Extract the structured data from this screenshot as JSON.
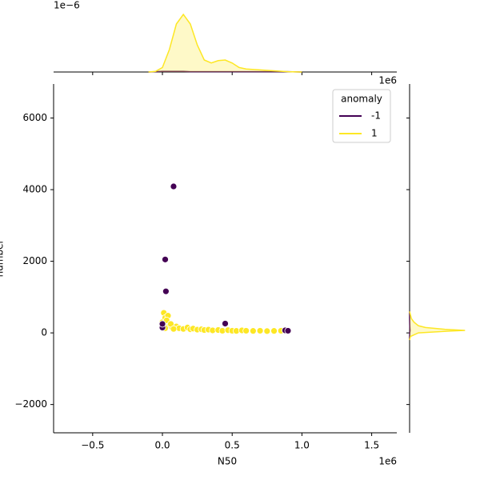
{
  "chart_data": {
    "type": "scatter",
    "x_label": "N50",
    "y_label": "number",
    "x_offset_label": "1e6",
    "top_offset_label": "1e−6",
    "right_offset_label": "1e6",
    "xlim": [
      -0.78,
      1.68
    ],
    "xticks": [
      {
        "value": -0.5,
        "label": "−0.5"
      },
      {
        "value": 0,
        "label": "0.0"
      },
      {
        "value": 0.5,
        "label": "0.5"
      },
      {
        "value": 1,
        "label": "1.0"
      },
      {
        "value": 1.5,
        "label": "1.5"
      }
    ],
    "ylim": [
      -2790,
      6950
    ],
    "yticks": [
      {
        "value": -2000,
        "label": "−2000"
      },
      0,
      2000,
      4000,
      6000
    ],
    "legend_title": "anomaly",
    "legend_position": "upper right",
    "series": [
      {
        "name": "-1",
        "color": "#440154",
        "x": [
          0.0,
          0.0,
          0.025,
          0.02,
          0.08,
          0.45,
          0.88,
          0.9
        ],
        "values": [
          150,
          250,
          1160,
          2050,
          4090,
          260,
          70,
          60
        ]
      },
      {
        "name": "1",
        "color": "#fde725",
        "x": [
          0.0,
          0.01,
          0.02,
          0.04,
          0.03,
          0.05,
          0.07,
          0.1,
          0.12,
          0.15,
          0.18,
          0.2,
          0.22,
          0.25,
          0.28,
          0.3,
          0.33,
          0.36,
          0.4,
          0.43,
          0.47,
          0.5,
          0.53,
          0.57,
          0.6,
          0.65,
          0.7,
          0.75,
          0.8,
          0.85,
          0.06,
          0.08,
          0.02
        ],
        "values": [
          300,
          560,
          420,
          480,
          350,
          200,
          150,
          180,
          130,
          110,
          150,
          100,
          120,
          90,
          100,
          80,
          90,
          70,
          80,
          60,
          75,
          60,
          55,
          70,
          60,
          55,
          60,
          50,
          55,
          60,
          250,
          110,
          130
        ]
      }
    ],
    "marginal_x": {
      "ylim": [
        0,
        2.4
      ],
      "x": [
        -0.1,
        -0.05,
        0,
        0.05,
        0.1,
        0.15,
        0.2,
        0.25,
        0.3,
        0.35,
        0.4,
        0.45,
        0.5,
        0.55,
        0.6,
        0.7,
        0.8,
        0.9,
        1.0
      ],
      "values": [
        [
          0,
          0.01,
          0.02,
          0.02,
          0.02,
          0.02,
          0.01,
          0.01,
          0.01,
          0.01,
          0.01,
          0.01,
          0.01,
          0.01,
          0.01,
          0.01,
          0.01,
          0.01,
          0
        ],
        [
          0,
          0.02,
          0.15,
          0.75,
          1.6,
          1.92,
          1.6,
          0.9,
          0.4,
          0.3,
          0.38,
          0.4,
          0.3,
          0.15,
          0.1,
          0.07,
          0.04,
          0.01,
          0
        ]
      ]
    },
    "marginal_y": {
      "xlim": [
        0,
        80
      ],
      "y": [
        -200,
        -100,
        0,
        50,
        70,
        100,
        150,
        200,
        300,
        400,
        600
      ],
      "values": [
        [
          0,
          0,
          0.2,
          0.4,
          0.5,
          0.4,
          0.3,
          0.2,
          0.1,
          0,
          0
        ],
        [
          0,
          1,
          10,
          45,
          63,
          40,
          18,
          10,
          5,
          2,
          0
        ]
      ]
    }
  }
}
